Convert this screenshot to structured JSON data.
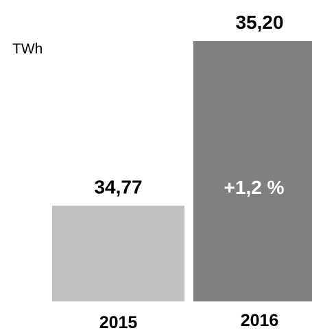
{
  "chart_data": {
    "type": "bar",
    "unit": "TWh",
    "categories": [
      "2015",
      "2016"
    ],
    "values": [
      34.77,
      35.2
    ],
    "value_labels": [
      "34,77",
      "35,20"
    ],
    "change_label": "+1,2 %",
    "colors": [
      "#c0c0c0",
      "#808080"
    ],
    "change_label_color": "#ffffff",
    "ylim_note": "truncated axis",
    "legend": "none",
    "grid": false
  }
}
